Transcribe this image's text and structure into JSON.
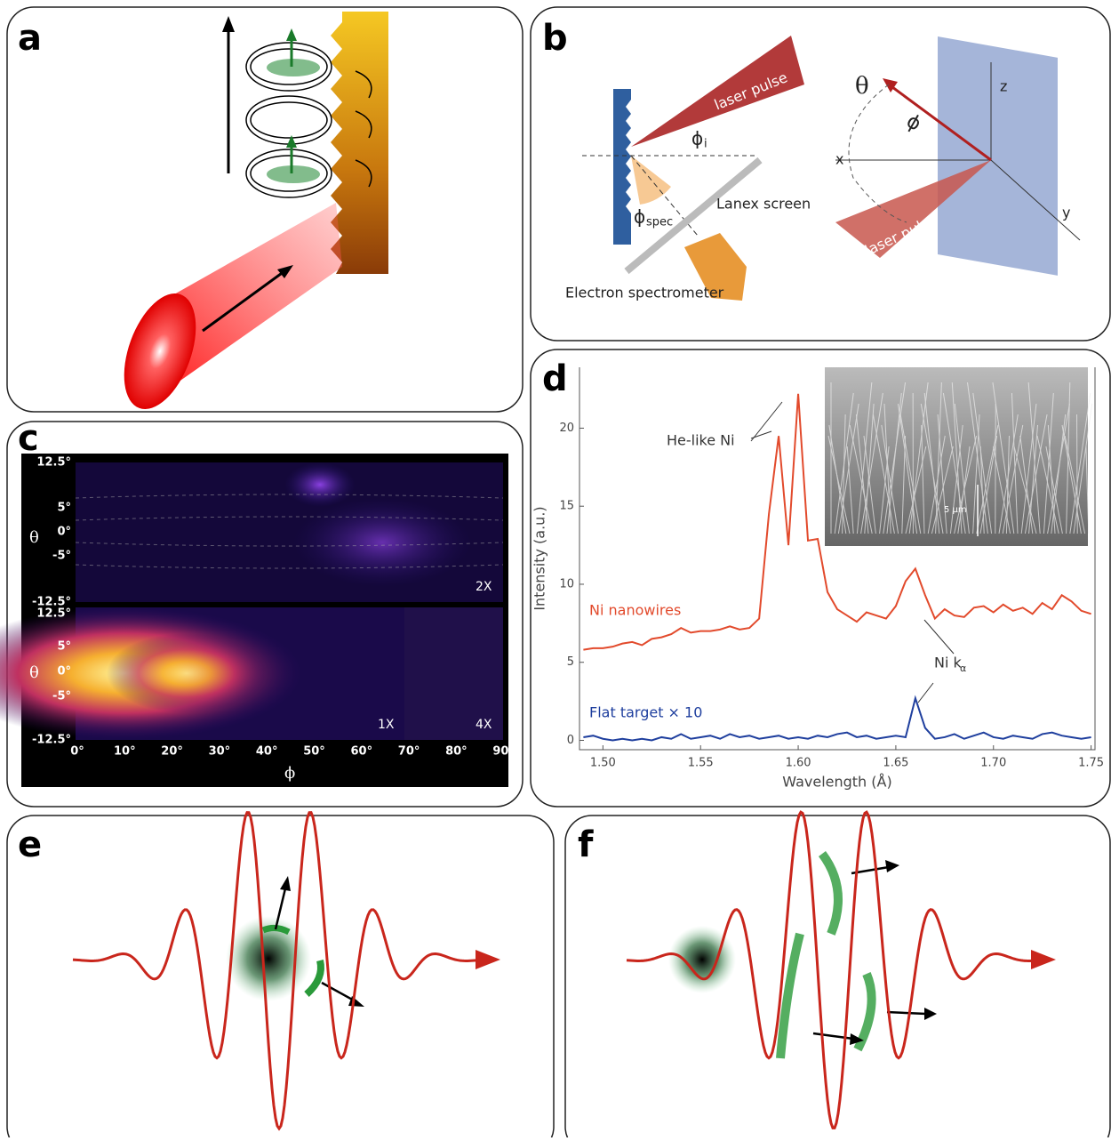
{
  "panels": {
    "a": {
      "label": "a"
    },
    "b": {
      "label": "b",
      "laser_left": "laser pulse",
      "phi_i_symbol": "ϕ",
      "phi_i_sub": "i",
      "phi_spec_symbol": "ϕ",
      "phi_spec_sub": "spec",
      "screen": "Lanex screen",
      "spectrometer": "Electron spectrometer",
      "theta": "θ",
      "phi_right": "ϕ",
      "z": "z",
      "x": "x",
      "y": "y",
      "laser_right": "laser pulse"
    },
    "c": {
      "label": "c",
      "top_yticks": [
        "12.5°",
        "5°",
        "0°",
        "-5°",
        "-12.5°"
      ],
      "bottom_yticks": [
        "12.5°",
        "5°",
        "0°",
        "-5°",
        "-12.5°"
      ],
      "xticks": [
        "0°",
        "10°",
        "20°",
        "30°",
        "40°",
        "50°",
        "60°",
        "70°",
        "80°",
        "90°"
      ],
      "top_ylabel": "θ",
      "bottom_ylabel": "θ",
      "xlabel": "ϕ",
      "top_gain": "2X",
      "bottom_gain": "1X",
      "right_gain": "4X"
    },
    "d": {
      "label": "d"
    },
    "e": {
      "label": "e"
    },
    "f": {
      "label": "f"
    }
  },
  "chart_data": {
    "type": "line",
    "xlabel": "Wavelength (Å)",
    "ylabel": "Intensity (a.u.)",
    "xlim": [
      1.488,
      1.752
    ],
    "ylim": [
      -0.6,
      23.9
    ],
    "xticks": [
      {
        "value": 1.5,
        "label": "1.50"
      },
      {
        "value": 1.55,
        "label": "1.55"
      },
      {
        "value": 1.6,
        "label": "1.60"
      },
      {
        "value": 1.65,
        "label": "1.65"
      },
      {
        "value": 1.7,
        "label": "1.70"
      },
      {
        "value": 1.75,
        "label": "1.75"
      }
    ],
    "yticks": [
      0,
      5,
      10,
      15,
      20
    ],
    "x": [
      1.49,
      1.495,
      1.5,
      1.505,
      1.51,
      1.515,
      1.52,
      1.525,
      1.53,
      1.535,
      1.54,
      1.545,
      1.55,
      1.555,
      1.56,
      1.565,
      1.57,
      1.575,
      1.58,
      1.585,
      1.59,
      1.595,
      1.6,
      1.605,
      1.61,
      1.615,
      1.62,
      1.625,
      1.63,
      1.635,
      1.64,
      1.645,
      1.65,
      1.655,
      1.66,
      1.665,
      1.67,
      1.675,
      1.68,
      1.685,
      1.69,
      1.695,
      1.7,
      1.705,
      1.71,
      1.715,
      1.72,
      1.725,
      1.73,
      1.735,
      1.74,
      1.745,
      1.75
    ],
    "series": [
      {
        "name": "Ni nanowires",
        "color": "#e24a2c",
        "values": [
          5.8,
          5.9,
          5.9,
          6.0,
          6.2,
          6.3,
          6.1,
          6.5,
          6.6,
          6.8,
          7.2,
          6.9,
          7.0,
          7.0,
          7.1,
          7.3,
          7.1,
          7.2,
          7.8,
          14.5,
          19.5,
          12.5,
          22.2,
          12.8,
          12.9,
          9.5,
          8.4,
          8.0,
          7.6,
          8.2,
          8.0,
          7.8,
          8.6,
          10.2,
          11.0,
          9.3,
          7.8,
          8.4,
          8.0,
          7.9,
          8.5,
          8.6,
          8.2,
          8.7,
          8.3,
          8.5,
          8.1,
          8.8,
          8.4,
          9.3,
          8.9,
          8.3,
          8.1
        ]
      },
      {
        "name": "Flat target × 10",
        "color": "#1f3f9e",
        "values": [
          0.2,
          0.3,
          0.1,
          0.0,
          0.1,
          0.0,
          0.1,
          0.0,
          0.2,
          0.1,
          0.4,
          0.1,
          0.2,
          0.3,
          0.1,
          0.4,
          0.2,
          0.3,
          0.1,
          0.2,
          0.3,
          0.1,
          0.2,
          0.1,
          0.3,
          0.2,
          0.4,
          0.5,
          0.2,
          0.3,
          0.1,
          0.2,
          0.3,
          0.2,
          2.7,
          0.8,
          0.1,
          0.2,
          0.4,
          0.1,
          0.3,
          0.5,
          0.2,
          0.1,
          0.3,
          0.2,
          0.1,
          0.4,
          0.5,
          0.3,
          0.2,
          0.1,
          0.2
        ]
      }
    ],
    "annotations": {
      "he_like": "He-like Ni",
      "ni_k": "Ni k",
      "ni_k_sub": "α",
      "scale": "5 μm"
    }
  }
}
